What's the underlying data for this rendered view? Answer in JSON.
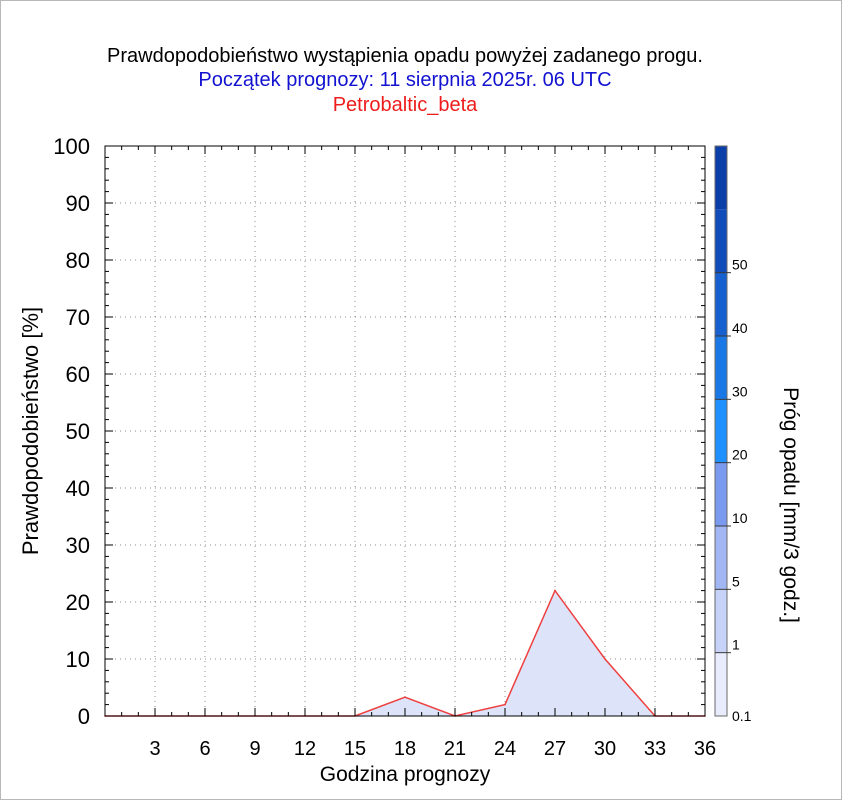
{
  "title": "Prawdopodobieństwo wystąpienia opadu powyżej zadanego progu.",
  "subtitle": "Początek prognozy: 11 sierpnia 2025r. 06 UTC",
  "model": "Petrobaltic_beta",
  "colors": {
    "title": "#000000",
    "subtitle": "#1212d0",
    "model": "#ee1c1c",
    "line": "#ee4040",
    "fill": "#dde4fa"
  },
  "chart_data": {
    "type": "area",
    "xlabel": "Godzina prognozy",
    "ylabel": "Prawdopodobieństwo [%]",
    "xlim": [
      0,
      36
    ],
    "ylim": [
      0,
      100
    ],
    "x_ticks": [
      "3",
      "6",
      "9",
      "12",
      "15",
      "18",
      "21",
      "24",
      "27",
      "30",
      "33",
      "36"
    ],
    "y_ticks": [
      "0",
      "10",
      "20",
      "30",
      "40",
      "50",
      "60",
      "70",
      "80",
      "90",
      "100"
    ],
    "grid": true,
    "series": [
      {
        "x": [
          0,
          3,
          6,
          9,
          12,
          15,
          18,
          21,
          24,
          27,
          30,
          33,
          36
        ],
        "values": [
          0,
          0,
          0,
          0,
          0,
          0,
          3.3,
          0,
          2,
          22,
          10,
          0,
          0
        ]
      }
    ],
    "colorbar": {
      "label": "Próg opadu [mm/3 godz.]",
      "levels": [
        0.1,
        1,
        5,
        10,
        20,
        30,
        40,
        50
      ],
      "tick_labels": [
        "0.1",
        "1",
        "5",
        "10",
        "20",
        "30",
        "40",
        "50"
      ],
      "colors": [
        "#e8ecfc",
        "#c6d2f8",
        "#a2b6f4",
        "#7a9af0",
        "#1e90ff",
        "#1a78e6",
        "#1660d0",
        "#0f4cba",
        "#0a3ea8"
      ]
    }
  }
}
